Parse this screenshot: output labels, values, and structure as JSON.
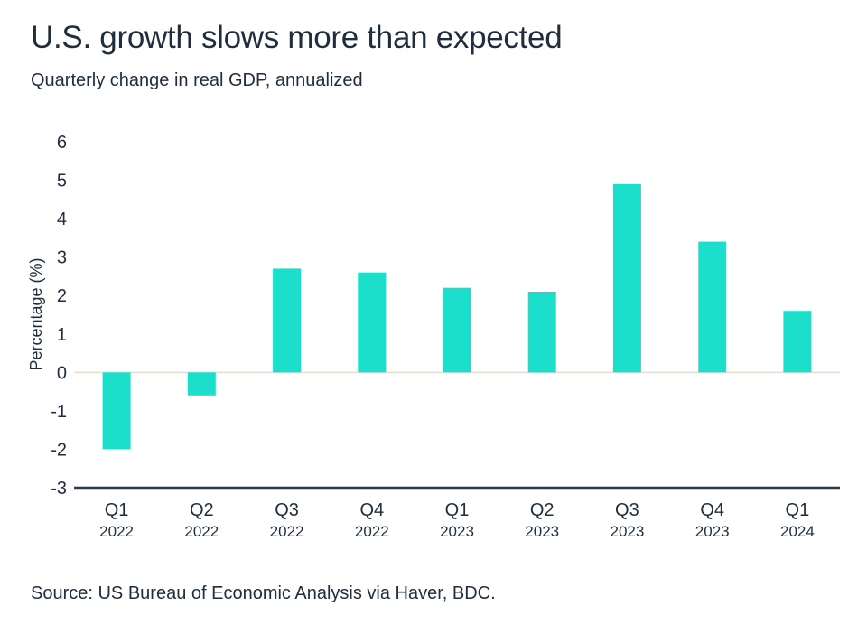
{
  "title": "U.S. growth slows more than expected",
  "subtitle": "Quarterly change in real GDP, annualized",
  "source": "Source: US Bureau of Economic Analysis via Haver, BDC.",
  "colors": {
    "bar": "#1bdfca",
    "axis": "#2b3a4a",
    "zero_line": "#e6ddd2",
    "text": "#1f2d3d"
  },
  "chart_data": {
    "type": "bar",
    "title": "U.S. growth slows more than expected",
    "subtitle": "Quarterly change in real GDP, annualized",
    "ylabel": "Percentage (%)",
    "xlabel": "",
    "ylim": [
      -3,
      6
    ],
    "yticks": [
      "6",
      "5",
      "4",
      "3",
      "2",
      "1",
      "0",
      "-1",
      "-2",
      "-3"
    ],
    "grid": false,
    "legend": "none",
    "categories": [
      {
        "quarter": "Q1",
        "year": "2022"
      },
      {
        "quarter": "Q2",
        "year": "2022"
      },
      {
        "quarter": "Q3",
        "year": "2022"
      },
      {
        "quarter": "Q4",
        "year": "2022"
      },
      {
        "quarter": "Q1",
        "year": "2023"
      },
      {
        "quarter": "Q2",
        "year": "2023"
      },
      {
        "quarter": "Q3",
        "year": "2023"
      },
      {
        "quarter": "Q4",
        "year": "2023"
      },
      {
        "quarter": "Q1",
        "year": "2024"
      }
    ],
    "values": [
      -2.0,
      -0.6,
      2.7,
      2.6,
      2.2,
      2.1,
      4.9,
      3.4,
      1.6
    ]
  }
}
